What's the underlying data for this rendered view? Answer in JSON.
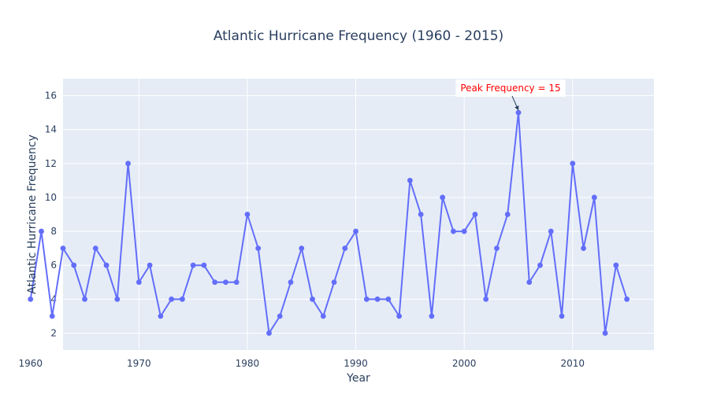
{
  "chart_data": {
    "type": "line",
    "title": "Atlantic Hurricane Frequency (1960 - 2015)",
    "xlabel": "Year",
    "ylabel": "Atlantic Hurricane Frequency",
    "xlim": [
      1963.0,
      2017.5
    ],
    "ylim": [
      1.0,
      17.0
    ],
    "xticks": [
      1960,
      1970,
      1980,
      1990,
      2000,
      2010
    ],
    "yticks": [
      2,
      4,
      6,
      8,
      10,
      12,
      14,
      16
    ],
    "grid": true,
    "colors": {
      "line": "#636efa",
      "plot_bg": "#e5ecf6",
      "grid": "#ffffff",
      "annotation": "#ff0000"
    },
    "series": [
      {
        "x": [
          1960,
          1961,
          1962,
          1963,
          1964,
          1965,
          1966,
          1967,
          1968,
          1969,
          1970,
          1971,
          1972,
          1973,
          1974,
          1975,
          1976,
          1977,
          1978,
          1979,
          1980,
          1981,
          1982,
          1983,
          1984,
          1985,
          1986,
          1987,
          1988,
          1989,
          1990,
          1991,
          1992,
          1993,
          1994,
          1995,
          1996,
          1997,
          1998,
          1999,
          2000,
          2001,
          2002,
          2003,
          2004,
          2005,
          2006,
          2007,
          2008,
          2009,
          2010,
          2011,
          2012,
          2013,
          2014,
          2015
        ],
        "y": [
          4,
          8,
          3,
          7,
          6,
          4,
          7,
          6,
          4,
          12,
          5,
          6,
          3,
          4,
          4,
          6,
          6,
          5,
          5,
          5,
          9,
          7,
          2,
          3,
          5,
          7,
          4,
          3,
          5,
          7,
          8,
          4,
          4,
          4,
          3,
          11,
          9,
          3,
          10,
          8,
          8,
          9,
          4,
          7,
          9,
          15,
          5,
          6,
          8,
          3,
          12,
          7,
          10,
          2,
          6,
          4
        ]
      }
    ],
    "annotations": [
      {
        "text": "Peak Frequency = 15",
        "x": 2005,
        "y": 15
      }
    ]
  }
}
